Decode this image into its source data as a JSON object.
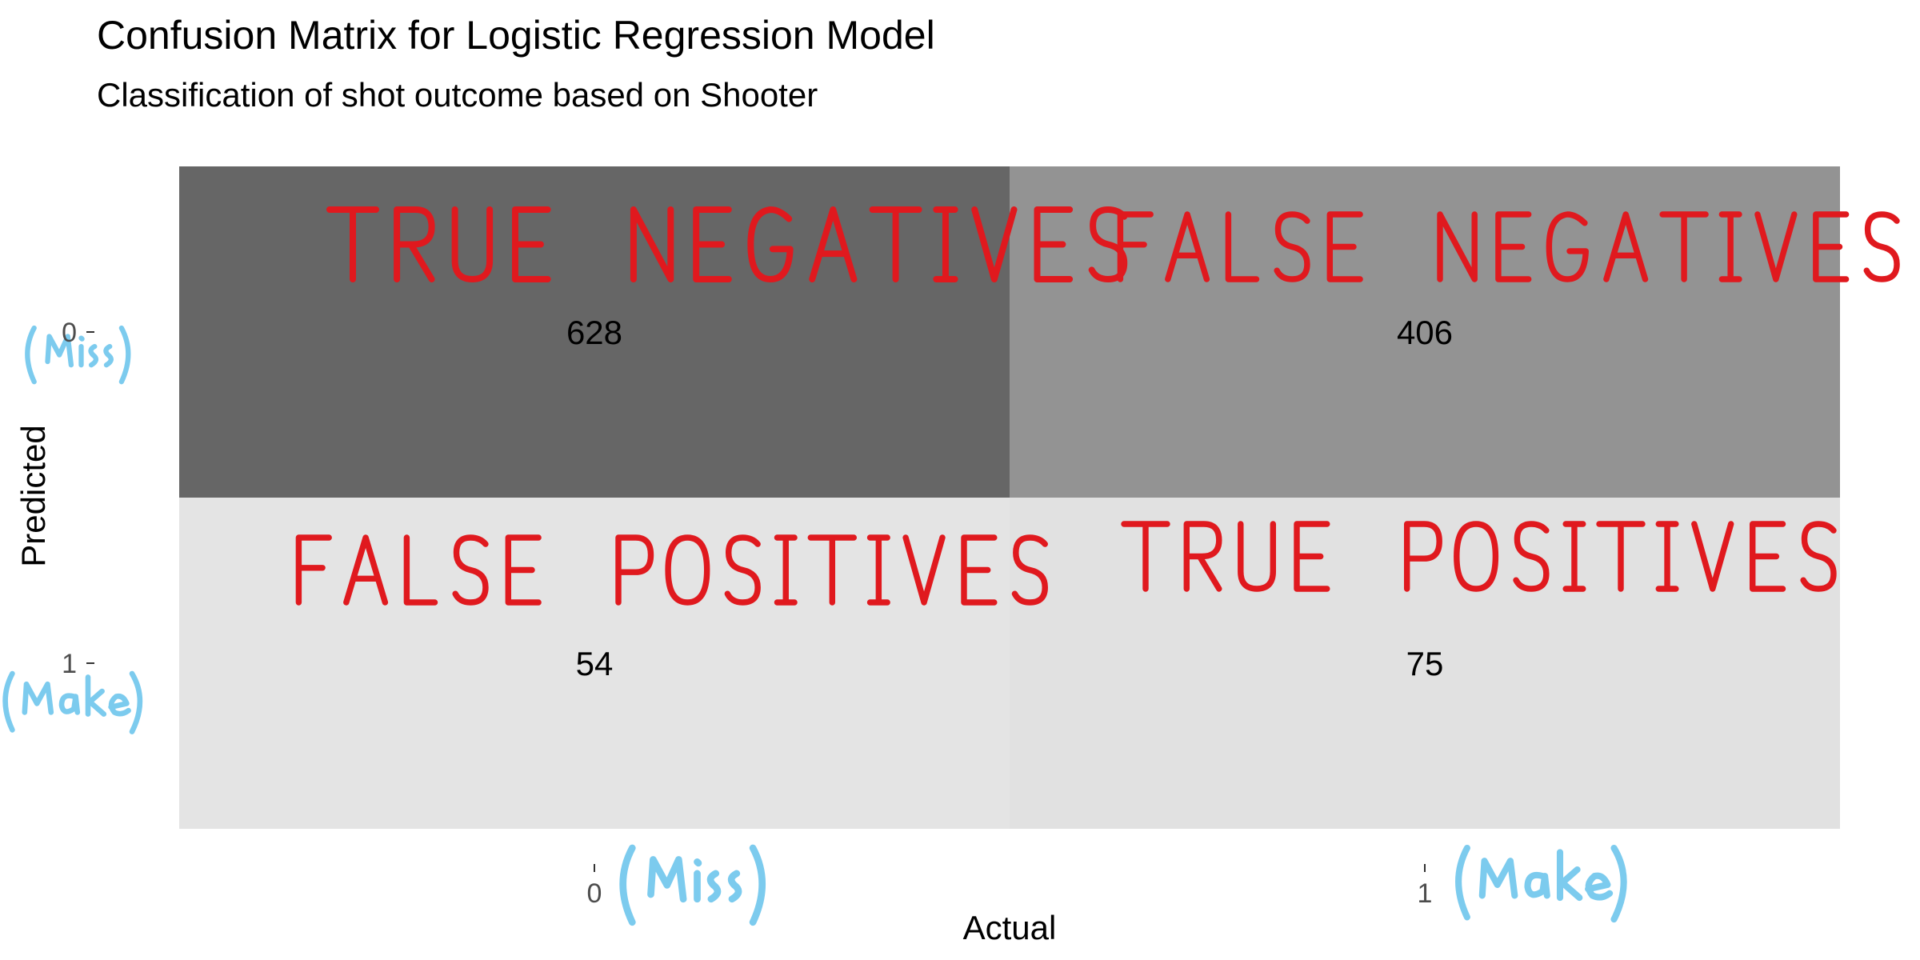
{
  "chart_data": {
    "type": "heatmap",
    "title": "Confusion Matrix for Logistic Regression Model",
    "subtitle": "Classification of shot outcome based on Shooter",
    "xlabel": "Actual",
    "ylabel": "Predicted",
    "x_categories": [
      "0",
      "1"
    ],
    "y_categories": [
      "0",
      "1"
    ],
    "cells": [
      {
        "actual": "0",
        "predicted": "0",
        "value": 628,
        "fill": "#666666",
        "annotation": "TRUE NEGATIVES"
      },
      {
        "actual": "1",
        "predicted": "0",
        "value": 406,
        "fill": "#939393",
        "annotation": "FALSE NEGATIVES"
      },
      {
        "actual": "0",
        "predicted": "1",
        "value": 54,
        "fill": "#e4e4e4",
        "annotation": "FALSE POSITIVES"
      },
      {
        "actual": "1",
        "predicted": "1",
        "value": 75,
        "fill": "#e1e1e1",
        "annotation": "TRUE POSITIVES"
      }
    ],
    "x_tick_annotations": [
      "(Miss)",
      "(Make)"
    ],
    "y_tick_annotations": [
      "(Miss)",
      "(Make)"
    ],
    "legend": "none",
    "grid": false
  },
  "colors": {
    "annotation_red": "#e0191e",
    "annotation_blue": "#7ccbee"
  }
}
